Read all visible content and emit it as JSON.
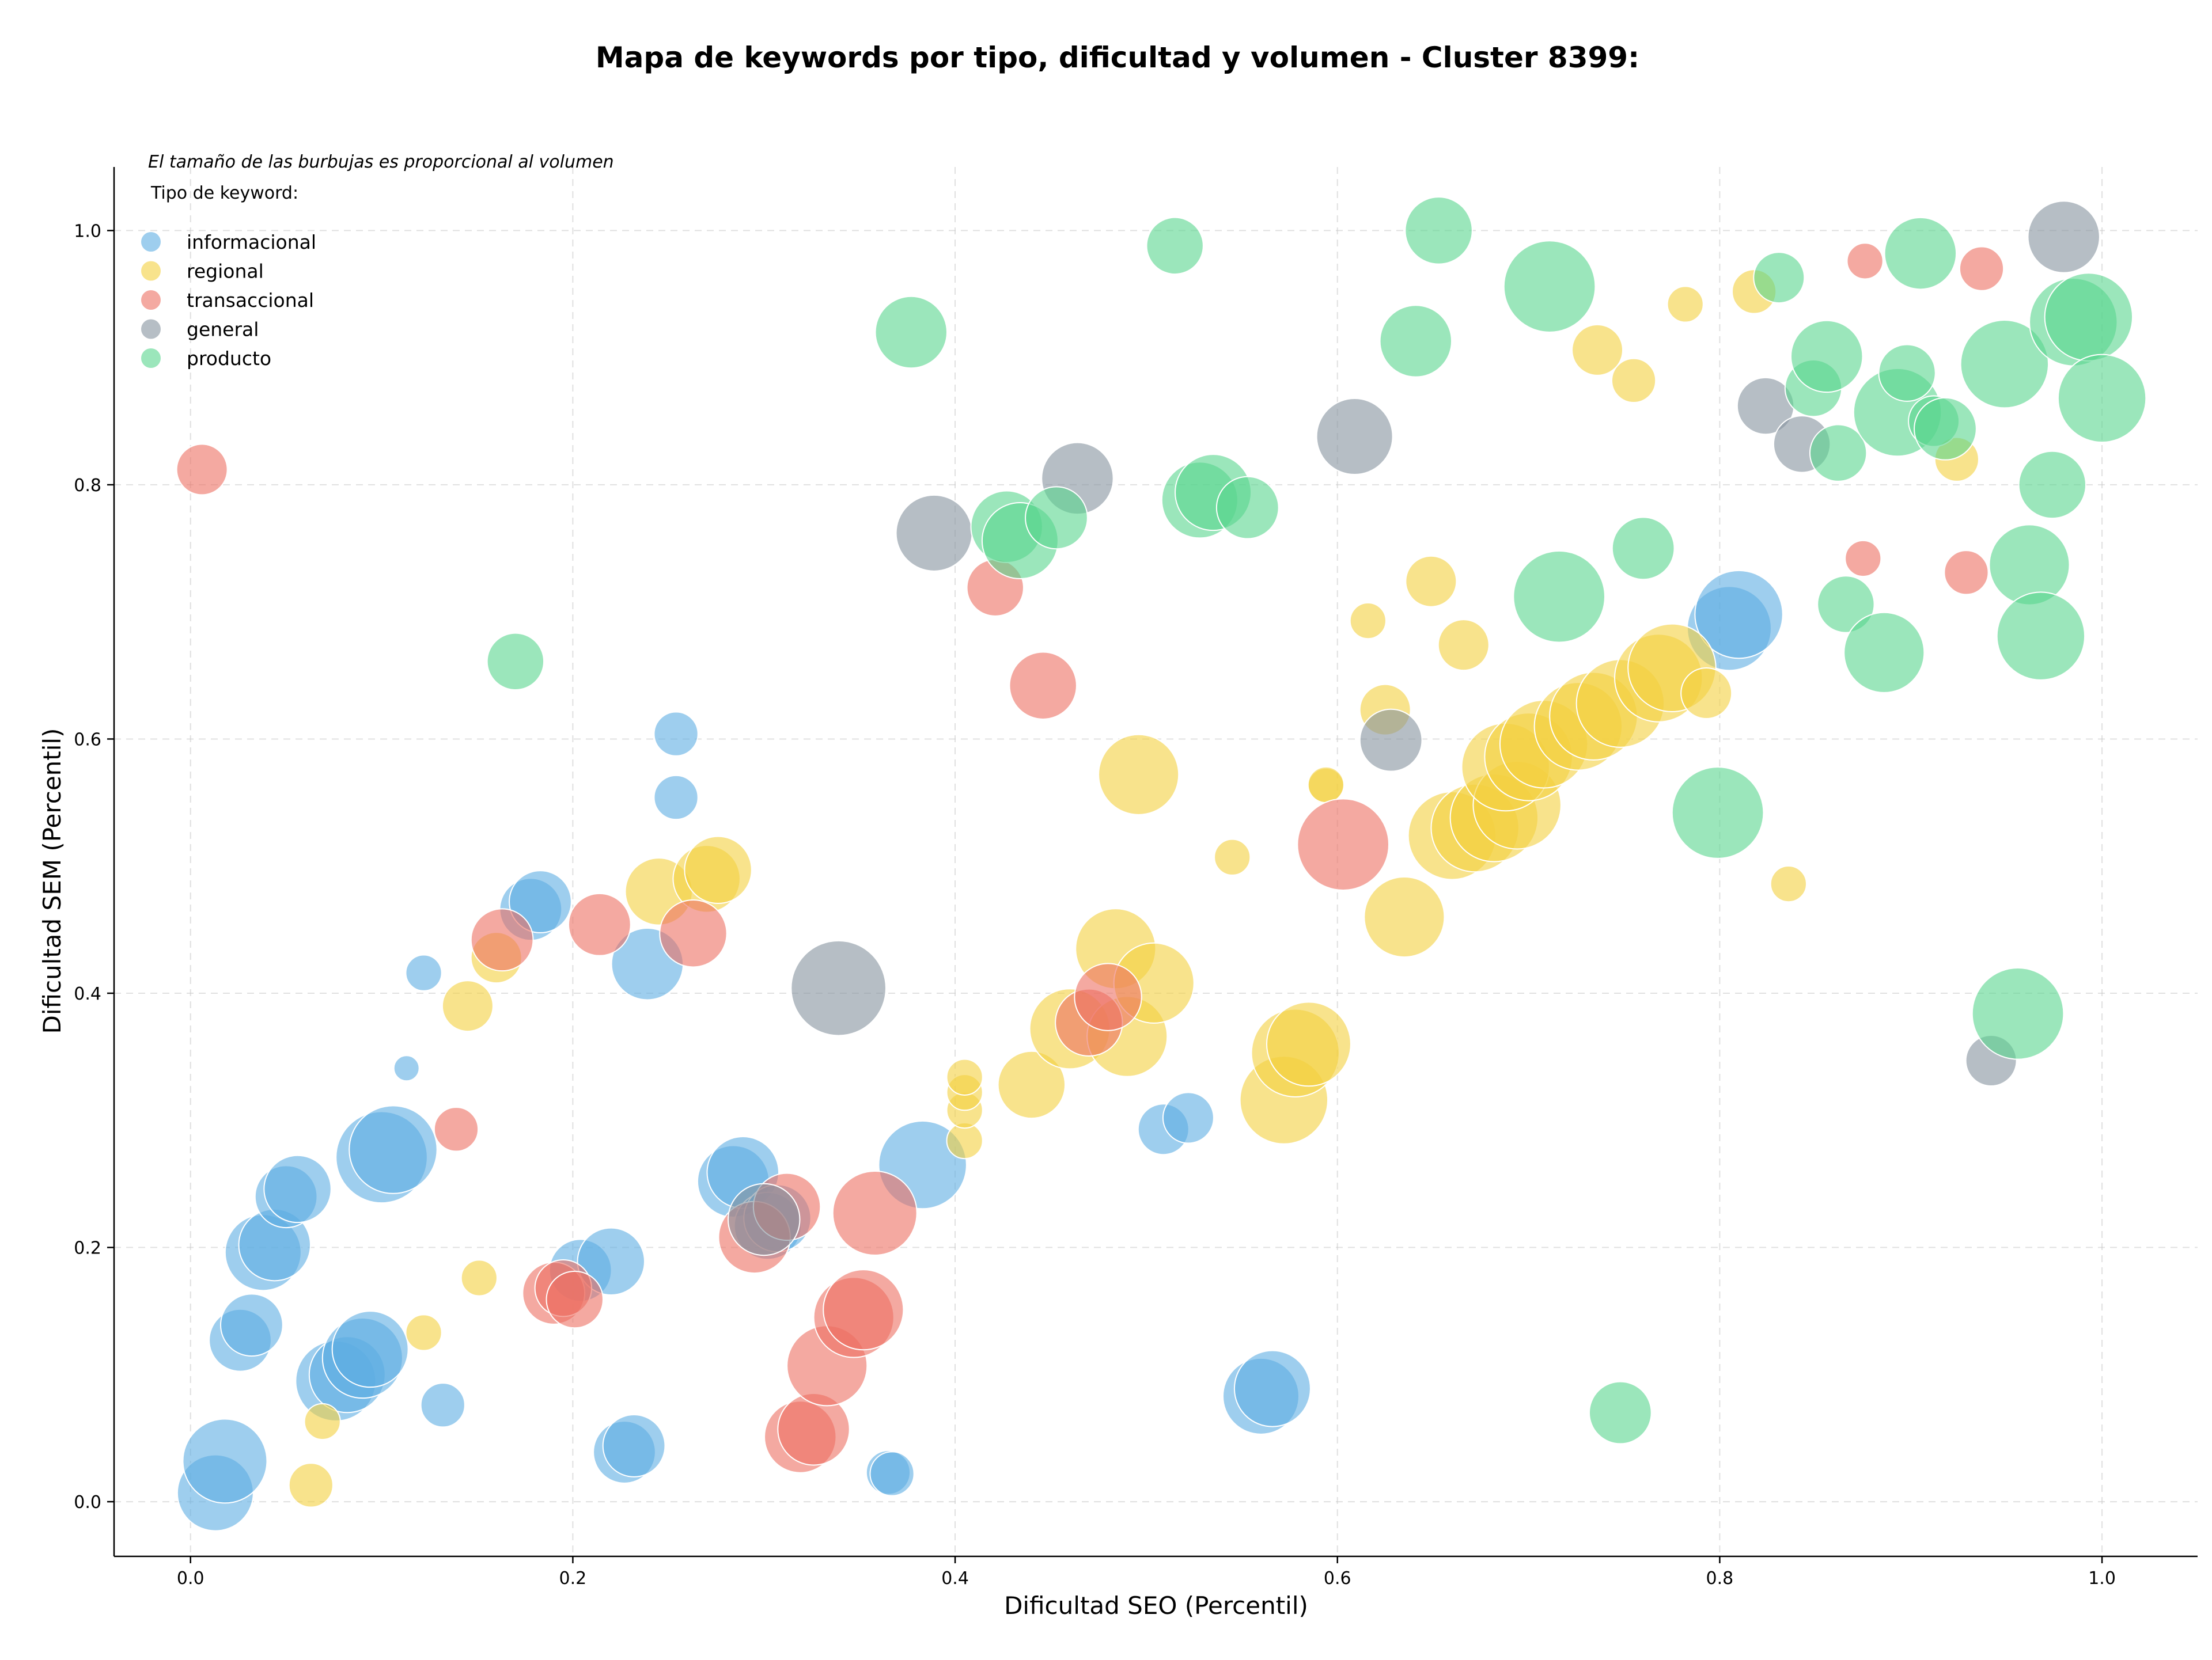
{
  "chart_data": {
    "type": "scatter",
    "title": "Mapa de keywords por tipo, dificultad y volumen - Cluster 8399:",
    "xlabel": "Dificultad SEO (Percentil)",
    "ylabel": "Dificultad SEM (Percentil)",
    "xlim": [
      -0.04,
      1.05
    ],
    "ylim": [
      -0.043,
      1.05
    ],
    "xticks": [
      "0.0",
      "0.2",
      "0.4",
      "0.6",
      "0.8",
      "1.0"
    ],
    "yticks": [
      "0.0",
      "0.2",
      "0.4",
      "0.6",
      "0.8",
      "1.0"
    ],
    "grid": true,
    "legend_placement": "top-left",
    "legend_note": "El tamaño de las burbujas es proporcional al volumen",
    "legend_title": "Tipo de keyword:",
    "series": [
      {
        "name": "informacional",
        "color": "#5dade2",
        "points": [
          [
            0.013,
            0.007,
            9
          ],
          [
            0.018,
            0.032,
            11
          ],
          [
            0.026,
            0.127,
            6
          ],
          [
            0.032,
            0.139,
            6
          ],
          [
            0.038,
            0.196,
            9
          ],
          [
            0.044,
            0.202,
            8
          ],
          [
            0.05,
            0.24,
            6
          ],
          [
            0.056,
            0.246,
            7
          ],
          [
            0.076,
            0.095,
            10
          ],
          [
            0.082,
            0.1,
            9
          ],
          [
            0.09,
            0.113,
            10
          ],
          [
            0.094,
            0.12,
            9
          ],
          [
            0.1,
            0.271,
            13
          ],
          [
            0.106,
            0.277,
            12
          ],
          [
            0.113,
            0.341,
            1
          ],
          [
            0.122,
            0.416,
            2
          ],
          [
            0.132,
            0.076,
            3
          ],
          [
            0.178,
            0.466,
            6
          ],
          [
            0.183,
            0.472,
            6
          ],
          [
            0.204,
            0.182,
            6
          ],
          [
            0.22,
            0.189,
            7
          ],
          [
            0.227,
            0.039,
            6
          ],
          [
            0.232,
            0.044,
            6
          ],
          [
            0.239,
            0.423,
            8
          ],
          [
            0.254,
            0.554,
            3
          ],
          [
            0.254,
            0.604,
            3
          ],
          [
            0.284,
            0.252,
            8
          ],
          [
            0.289,
            0.259,
            8
          ],
          [
            0.302,
            0.217,
            7
          ],
          [
            0.307,
            0.223,
            7
          ],
          [
            0.365,
            0.023,
            3
          ],
          [
            0.367,
            0.022,
            3
          ],
          [
            0.383,
            0.265,
            12
          ],
          [
            0.509,
            0.293,
            4
          ],
          [
            0.522,
            0.302,
            4
          ],
          [
            0.56,
            0.083,
            9
          ],
          [
            0.566,
            0.089,
            9
          ],
          [
            0.805,
            0.687,
            11
          ],
          [
            0.81,
            0.698,
            12
          ]
        ]
      },
      {
        "name": "regional",
        "color": "#f4d03f",
        "points": [
          [
            0.063,
            0.013,
            3
          ],
          [
            0.069,
            0.063,
            2
          ],
          [
            0.122,
            0.133,
            2
          ],
          [
            0.151,
            0.176,
            2
          ],
          [
            0.145,
            0.39,
            4
          ],
          [
            0.16,
            0.428,
            4
          ],
          [
            0.245,
            0.48,
            7
          ],
          [
            0.27,
            0.49,
            7
          ],
          [
            0.276,
            0.497,
            7
          ],
          [
            0.405,
            0.284,
            2
          ],
          [
            0.405,
            0.308,
            2
          ],
          [
            0.405,
            0.322,
            2
          ],
          [
            0.405,
            0.334,
            2
          ],
          [
            0.44,
            0.328,
            7
          ],
          [
            0.46,
            0.372,
            10
          ],
          [
            0.484,
            0.435,
            10
          ],
          [
            0.49,
            0.366,
            10
          ],
          [
            0.504,
            0.408,
            10
          ],
          [
            0.496,
            0.572,
            10
          ],
          [
            0.545,
            0.507,
            2
          ],
          [
            0.572,
            0.316,
            12
          ],
          [
            0.578,
            0.353,
            12
          ],
          [
            0.585,
            0.36,
            11
          ],
          [
            0.594,
            0.563,
            2
          ],
          [
            0.594,
            0.564,
            2
          ],
          [
            0.616,
            0.693,
            2
          ],
          [
            0.625,
            0.623,
            4
          ],
          [
            0.635,
            0.46,
            10
          ],
          [
            0.649,
            0.724,
            4
          ],
          [
            0.666,
            0.674,
            4
          ],
          [
            0.66,
            0.524,
            12
          ],
          [
            0.672,
            0.53,
            12
          ],
          [
            0.682,
            0.538,
            12
          ],
          [
            0.694,
            0.548,
            12
          ],
          [
            0.688,
            0.578,
            12
          ],
          [
            0.7,
            0.586,
            12
          ],
          [
            0.708,
            0.596,
            12
          ],
          [
            0.726,
            0.61,
            12
          ],
          [
            0.734,
            0.618,
            12
          ],
          [
            0.748,
            0.628,
            12
          ],
          [
            0.768,
            0.648,
            12
          ],
          [
            0.775,
            0.656,
            12
          ],
          [
            0.736,
            0.906,
            4
          ],
          [
            0.755,
            0.882,
            3
          ],
          [
            0.782,
            0.942,
            2
          ],
          [
            0.793,
            0.636,
            4
          ],
          [
            0.818,
            0.952,
            3
          ],
          [
            0.836,
            0.486,
            2
          ],
          [
            0.924,
            0.82,
            3
          ]
        ]
      },
      {
        "name": "transaccional",
        "color": "#ec7063",
        "points": [
          [
            0.006,
            0.812,
            4
          ],
          [
            0.139,
            0.293,
            3
          ],
          [
            0.163,
            0.442,
            6
          ],
          [
            0.19,
            0.164,
            6
          ],
          [
            0.195,
            0.168,
            5
          ],
          [
            0.201,
            0.159,
            5
          ],
          [
            0.214,
            0.454,
            6
          ],
          [
            0.263,
            0.447,
            7
          ],
          [
            0.295,
            0.208,
            8
          ],
          [
            0.312,
            0.232,
            7
          ],
          [
            0.319,
            0.051,
            8
          ],
          [
            0.326,
            0.057,
            8
          ],
          [
            0.333,
            0.107,
            10
          ],
          [
            0.347,
            0.145,
            10
          ],
          [
            0.352,
            0.151,
            10
          ],
          [
            0.358,
            0.227,
            11
          ],
          [
            0.421,
            0.719,
            5
          ],
          [
            0.446,
            0.642,
            7
          ],
          [
            0.47,
            0.377,
            7
          ],
          [
            0.48,
            0.397,
            7
          ],
          [
            0.603,
            0.517,
            13
          ],
          [
            0.875,
            0.742,
            2
          ],
          [
            0.876,
            0.976,
            2
          ],
          [
            0.929,
            0.731,
            3
          ],
          [
            0.937,
            0.97,
            3
          ]
        ]
      },
      {
        "name": "general",
        "color": "#85929e",
        "points": [
          [
            0.3,
            0.222,
            8
          ],
          [
            0.339,
            0.404,
            14
          ],
          [
            0.389,
            0.762,
            9
          ],
          [
            0.464,
            0.805,
            8
          ],
          [
            0.609,
            0.838,
            9
          ],
          [
            0.628,
            0.599,
            6
          ],
          [
            0.824,
            0.862,
            5
          ],
          [
            0.843,
            0.832,
            5
          ],
          [
            0.942,
            0.347,
            4
          ],
          [
            0.98,
            0.995,
            8
          ]
        ]
      },
      {
        "name": "producto",
        "color": "#58d68d",
        "points": [
          [
            0.17,
            0.661,
            5
          ],
          [
            0.377,
            0.92,
            8
          ],
          [
            0.427,
            0.767,
            8
          ],
          [
            0.434,
            0.756,
            9
          ],
          [
            0.453,
            0.774,
            6
          ],
          [
            0.515,
            0.988,
            5
          ],
          [
            0.528,
            0.788,
            9
          ],
          [
            0.535,
            0.794,
            9
          ],
          [
            0.553,
            0.782,
            6
          ],
          [
            0.641,
            0.913,
            8
          ],
          [
            0.653,
            1.0,
            7
          ],
          [
            0.711,
            0.956,
            13
          ],
          [
            0.716,
            0.712,
            13
          ],
          [
            0.748,
            0.07,
            6
          ],
          [
            0.76,
            0.75,
            6
          ],
          [
            0.799,
            0.542,
            13
          ],
          [
            0.831,
            0.963,
            4
          ],
          [
            0.849,
            0.876,
            5
          ],
          [
            0.856,
            0.901,
            8
          ],
          [
            0.862,
            0.825,
            5
          ],
          [
            0.866,
            0.706,
            5
          ],
          [
            0.886,
            0.668,
            10
          ],
          [
            0.893,
            0.857,
            12
          ],
          [
            0.898,
            0.888,
            5
          ],
          [
            0.905,
            0.982,
            8
          ],
          [
            0.912,
            0.85,
            4
          ],
          [
            0.918,
            0.844,
            6
          ],
          [
            0.949,
            0.895,
            12
          ],
          [
            0.962,
            0.737,
            10
          ],
          [
            0.968,
            0.681,
            12
          ],
          [
            0.974,
            0.8,
            7
          ],
          [
            0.956,
            0.384,
            13
          ],
          [
            0.985,
            0.928,
            12
          ],
          [
            0.993,
            0.932,
            12
          ],
          [
            1.0,
            0.868,
            12
          ]
        ]
      }
    ]
  }
}
